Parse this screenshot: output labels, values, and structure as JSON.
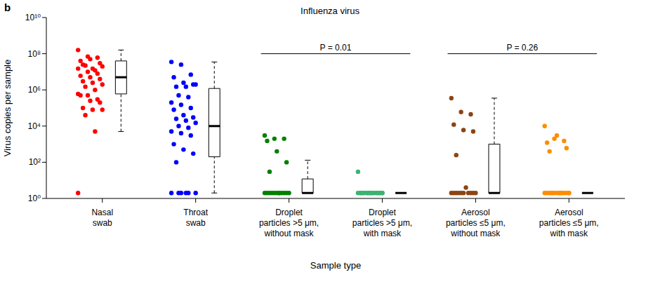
{
  "chart_data": {
    "type": "scatter",
    "panel_label": "b",
    "title": "Influenza virus",
    "xlabel": "Sample type",
    "ylabel": "Virus copies per sample",
    "log": "y",
    "grid": false,
    "marker": "circle",
    "categories": [
      "Nasal swab",
      "Throat swab",
      "Droplet particles >5 μm, without mask",
      "Droplet particles >5 μm, with mask",
      "Aerosol particles ≤5 μm, without mask",
      "Aerosol particles ≤5 μm, with mask"
    ],
    "colors": [
      "#ff0000",
      "#0000ff",
      "#008000",
      "#3cb371",
      "#8b4513",
      "#ff8c00"
    ],
    "values": [
      [
        160000000,
        70000000,
        60000000,
        40000000,
        50000000,
        30000000,
        25000000,
        15000000,
        20000000,
        22000000,
        12000000,
        15000000,
        10000000,
        8000000,
        6000000,
        5000000,
        4000000,
        3000000,
        2500000,
        2000000,
        1500000,
        1000000,
        600000,
        500000,
        300000,
        500000,
        250000,
        200000,
        100000,
        80000,
        80000,
        40000,
        5000,
        2
      ],
      [
        35000000,
        25000000,
        7000000,
        5000000,
        2500000,
        2000000,
        1500000,
        1500000,
        2000000,
        500000,
        400000,
        200000,
        150000,
        100000,
        80000,
        40000,
        30000,
        25000,
        20000,
        15000,
        10000,
        8000,
        5000,
        4000,
        3000,
        1000,
        500,
        300,
        100,
        2,
        2,
        2,
        2,
        2,
        2
      ],
      [
        3000,
        2000,
        2000,
        1500,
        400,
        100,
        30,
        2,
        2,
        2,
        2,
        2,
        2,
        2,
        2,
        2,
        2,
        2,
        2
      ],
      [
        30,
        2,
        2,
        2,
        2,
        2,
        2,
        2,
        2,
        2,
        2,
        2,
        2,
        2,
        2,
        2,
        2,
        2,
        2,
        2
      ],
      [
        350000,
        60000,
        45000,
        12000,
        6000,
        5000,
        250,
        4,
        2,
        2,
        2,
        2,
        2,
        2,
        2,
        2,
        2,
        2
      ],
      [
        10000,
        2000,
        1500,
        1200,
        3000,
        600,
        400,
        2,
        2,
        2,
        2,
        2,
        2,
        2,
        2,
        2,
        2,
        2,
        2,
        2,
        2,
        2
      ]
    ],
    "boxes": [
      {
        "whisker_low": 5000,
        "q1": 600000,
        "median": 5000000,
        "q3": 40000000,
        "whisker_high": 160000000
      },
      {
        "whisker_low": 2,
        "q1": 200,
        "median": 10000,
        "q3": 1200000,
        "whisker_high": 35000000
      },
      {
        "whisker_low": 2,
        "q1": 2,
        "median": 2,
        "q3": 12,
        "whisker_high": 130
      },
      {
        "whisker_low": 2,
        "q1": 2,
        "median": 2,
        "q3": 2,
        "whisker_high": 2
      },
      {
        "whisker_low": 2,
        "q1": 2,
        "median": 2,
        "q3": 1000,
        "whisker_high": 350000
      },
      {
        "whisker_low": 2,
        "q1": 2,
        "median": 2,
        "q3": 2,
        "whisker_high": 2
      }
    ],
    "annotations": [
      {
        "text": "P = 0.01",
        "between": [
          "Droplet particles >5 μm, without mask",
          "Droplet particles >5 μm, with mask"
        ]
      },
      {
        "text": "P = 0.26",
        "between": [
          "Aerosol particles ≤5 μm, without mask",
          "Aerosol particles ≤5 μm, with mask"
        ]
      }
    ],
    "ylim": [
      1,
      10000000000
    ],
    "yticks": [
      {
        "value": 1,
        "label": "10⁰"
      },
      {
        "value": 100,
        "label": "10²"
      },
      {
        "value": 10000,
        "label": "10⁴"
      },
      {
        "value": 1000000,
        "label": "10⁶"
      },
      {
        "value": 100000000,
        "label": "10⁸"
      },
      {
        "value": 10000000000,
        "label": "10¹⁰"
      }
    ]
  }
}
